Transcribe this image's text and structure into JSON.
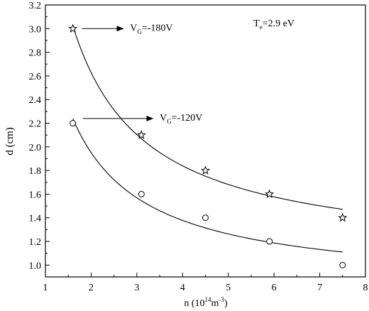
{
  "chart_data": {
    "type": "scatter",
    "title": "",
    "xlabel": {
      "base": "n (10",
      "exp1": "14",
      "mid": "m",
      "exp2": "-3",
      "end": ")"
    },
    "ylabel": "d (cm)",
    "xlim": [
      1,
      8
    ],
    "ylim": [
      0.9,
      3.2
    ],
    "xticks": [
      1,
      2,
      3,
      4,
      5,
      6,
      7,
      8
    ],
    "yticks": [
      1.0,
      1.2,
      1.4,
      1.6,
      1.8,
      2.0,
      2.2,
      2.4,
      2.6,
      2.8,
      3.0,
      3.2
    ],
    "yticks_format": "one-decimal",
    "grid": false,
    "series": [
      {
        "marker": "star",
        "x": [
          1.6,
          3.1,
          4.5,
          5.9,
          7.5
        ],
        "y": [
          3.0,
          2.1,
          1.8,
          1.6,
          1.4
        ],
        "fit_curve": true
      },
      {
        "marker": "circle",
        "x": [
          1.6,
          3.1,
          4.5,
          5.9,
          7.5
        ],
        "y": [
          2.2,
          1.6,
          1.4,
          1.2,
          1.0
        ],
        "fit_curve": true
      }
    ],
    "annotations": [
      {
        "label": {
          "sym": "V",
          "sub": "G",
          "rest": "=-180V"
        },
        "arrow_from": [
          1.8,
          3.0
        ],
        "arrow_to": [
          2.7,
          3.0
        ],
        "text_at": [
          2.85,
          2.98
        ]
      },
      {
        "label": {
          "sym": "V",
          "sub": "G",
          "rest": "=-120V"
        },
        "arrow_from": [
          1.82,
          2.24
        ],
        "arrow_to": [
          3.35,
          2.24
        ],
        "text_at": [
          3.5,
          2.22
        ]
      },
      {
        "label": {
          "sym": "T",
          "sub": "e",
          "rest": "=2.9 eV"
        },
        "text_at": [
          5.55,
          3.02
        ]
      }
    ]
  }
}
